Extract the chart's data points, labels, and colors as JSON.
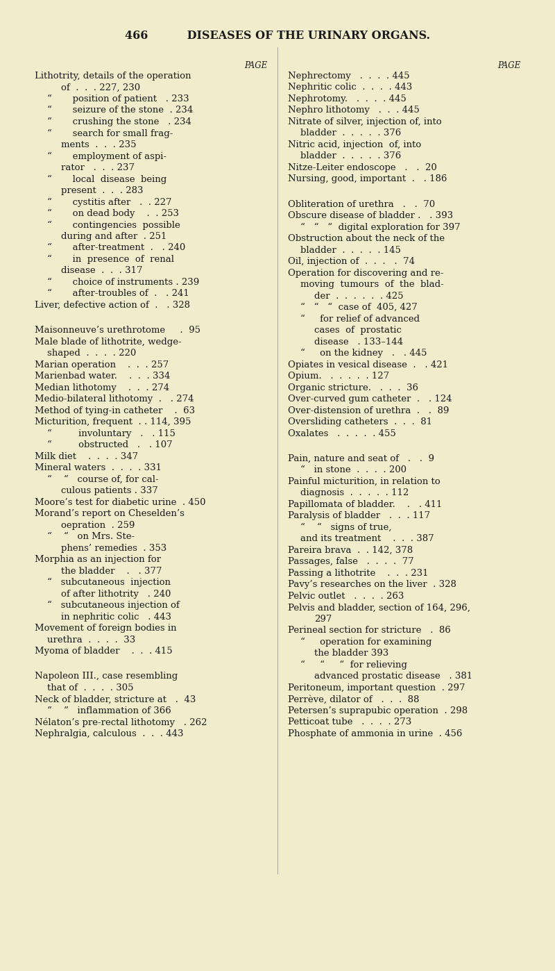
{
  "bg_color": "#f0eccc",
  "text_color": "#1a1a1a",
  "page_header": "466          DISEASES OF THE URINARY ORGANS.",
  "left_col": [
    [
      "PAGE",
      "right",
      0
    ],
    [
      "Lithotrity, details of the operation",
      "left_main",
      0
    ],
    [
      "of  .  .  . 227, 230",
      "indent2",
      0
    ],
    [
      "“       position of patient   . 233",
      "indent1",
      0
    ],
    [
      "“       seizure of the stone  . 234",
      "indent1",
      0
    ],
    [
      "“       crushing the stone   . 234",
      "indent1",
      0
    ],
    [
      "“       search for small frag-",
      "indent1",
      0
    ],
    [
      "ments  .  .  . 235",
      "indent2",
      0
    ],
    [
      "“       employment of aspi-",
      "indent1",
      0
    ],
    [
      "rator   .  .  . 237",
      "indent2",
      0
    ],
    [
      "“       local  disease  being",
      "indent1",
      0
    ],
    [
      "present  .  .  . 283",
      "indent2",
      0
    ],
    [
      "“       cystitis after   .  . 227",
      "indent1",
      0
    ],
    [
      "“       on dead body    .  . 253",
      "indent1",
      0
    ],
    [
      "“       contingencies  possible",
      "indent1",
      0
    ],
    [
      "during and after  . 251",
      "indent2",
      0
    ],
    [
      "“       after-treatment  .   . 240",
      "indent1",
      0
    ],
    [
      "“       in  presence  of  renal",
      "indent1",
      0
    ],
    [
      "disease  .  .  . 317",
      "indent2",
      0
    ],
    [
      "“       choice of instruments . 239",
      "indent1",
      0
    ],
    [
      "“       after-troubles of  .   . 241",
      "indent1",
      0
    ],
    [
      "Liver, defective action of  .   . 328",
      "left_main",
      0
    ],
    [
      "",
      "blank",
      0
    ],
    [
      "",
      "blank",
      0
    ],
    [
      "Maisonneuve’s urethrotome     .  95",
      "left_main_cap",
      0
    ],
    [
      "Male blade of lithotrite, wedge-",
      "left_main",
      0
    ],
    [
      "shaped  .  .  .  . 220",
      "indent1",
      0
    ],
    [
      "Marian operation    .  .  . 257",
      "left_main",
      0
    ],
    [
      "Marienbad water.    .  .  . 334",
      "left_main",
      0
    ],
    [
      "Median lithotomy    .  .  . 274",
      "left_main",
      0
    ],
    [
      "Medio-bilateral lithotomy  .   . 274",
      "left_main",
      0
    ],
    [
      "Method of tying-in catheter    .  63",
      "left_main",
      0
    ],
    [
      "Micturition, frequent  . . 114, 395",
      "left_main",
      0
    ],
    [
      "“         involuntary   .   . 115",
      "indent1",
      0
    ],
    [
      "“         obstructed   .   . 107",
      "indent1",
      0
    ],
    [
      "Milk diet    .  .  .  . 347",
      "left_main",
      0
    ],
    [
      "Mineral waters  .  .  .  . 331",
      "left_main",
      0
    ],
    [
      "“    “   course of, for cal-",
      "indent1",
      0
    ],
    [
      "culous patients . 337",
      "indent2",
      0
    ],
    [
      "Moore’s test for diabetic urine  . 450",
      "left_main",
      0
    ],
    [
      "Morand’s report on Cheselden’s",
      "left_main",
      0
    ],
    [
      "oepration  . 259",
      "indent2",
      0
    ],
    [
      "“    “   on Mrs. Ste-",
      "indent1",
      0
    ],
    [
      "phens’ remedies  . 353",
      "indent2",
      0
    ],
    [
      "Morphia as an injection for",
      "left_main",
      0
    ],
    [
      "the bladder    .   . 377",
      "indent2",
      0
    ],
    [
      "“   subcutaneous  injection",
      "indent1",
      0
    ],
    [
      "of after lithotrity   . 240",
      "indent2",
      0
    ],
    [
      "“   subcutaneous injection of",
      "indent1",
      0
    ],
    [
      "in nephritic colic   . 443",
      "indent2",
      0
    ],
    [
      "Movement of foreign bodies in",
      "left_main",
      0
    ],
    [
      "urethra  .  .  .  .  33",
      "indent1",
      0
    ],
    [
      "Myoma of bladder    .  .  . 415",
      "left_main",
      0
    ],
    [
      "",
      "blank",
      0
    ],
    [
      "",
      "blank",
      0
    ],
    [
      "Napoleon III., case resembling",
      "left_main_cap",
      0
    ],
    [
      "that of  .  .  .  . 305",
      "indent1",
      0
    ],
    [
      "Neck of bladder, stricture at   .  43",
      "left_main",
      0
    ],
    [
      "“    “   inflammation of 366",
      "indent1",
      0
    ],
    [
      "Nélaton’s pre-rectal lithotomy   . 262",
      "left_main",
      0
    ],
    [
      "Nephralgia, calculous  .  .  . 443",
      "left_main",
      0
    ]
  ],
  "right_col": [
    [
      "PAGE",
      "right",
      0
    ],
    [
      "Nephrectomy   .  .  .  . 445",
      "left_main",
      0
    ],
    [
      "Nephritic colic  .  .  .  . 443",
      "left_main",
      0
    ],
    [
      "Nephrotomy.   .  .  .  . 445",
      "left_main",
      0
    ],
    [
      "Nephro lithotomy   .  .  . 445",
      "left_main",
      0
    ],
    [
      "Nitrate of silver, injection of, into",
      "left_main",
      0
    ],
    [
      "bladder  .  .  .  .  . 376",
      "indent1",
      0
    ],
    [
      "Nitric acid, injection  of, into",
      "left_main",
      0
    ],
    [
      "bladder  .  .  .  .  . 376",
      "indent1",
      0
    ],
    [
      "Nitze-Leiter endoscope   .   .  20",
      "left_main",
      0
    ],
    [
      "Nursing, good, important  .   . 186",
      "left_main",
      0
    ],
    [
      "",
      "blank",
      0
    ],
    [
      "",
      "blank",
      0
    ],
    [
      "Obliteration of urethra   .   .  70",
      "left_main_cap",
      0
    ],
    [
      "Obscure disease of bladder .   . 393",
      "left_main",
      0
    ],
    [
      "“   “   “  digital exploration for 397",
      "indent1",
      0
    ],
    [
      "Obstruction about the neck of the",
      "left_main",
      0
    ],
    [
      "bladder  .  .  .  .  . 145",
      "indent1",
      0
    ],
    [
      "Oil, injection of  .  .  .   .  74",
      "left_main",
      0
    ],
    [
      "Operation for discovering and re-",
      "left_main",
      0
    ],
    [
      "moving  tumours  of  the  blad-",
      "indent1",
      0
    ],
    [
      "der  .  .  .  .  .  . 425",
      "indent2",
      0
    ],
    [
      "“   “   “  case of  405, 427",
      "indent1",
      0
    ],
    [
      "“     for relief of advanced",
      "indent1",
      0
    ],
    [
      "cases  of  prostatic",
      "indent2",
      0
    ],
    [
      "disease   . 133–144",
      "indent2",
      0
    ],
    [
      "“     on the kidney   .   . 445",
      "indent1",
      0
    ],
    [
      "Opiates in vesical disease  .   . 421",
      "left_main",
      0
    ],
    [
      "Opium.   .  .  .  .  . 127",
      "left_main",
      0
    ],
    [
      "Organic stricture.   .  .  .  36",
      "left_main",
      0
    ],
    [
      "Over-curved gum catheter  .   . 124",
      "left_main",
      0
    ],
    [
      "Over-distension of urethra  .   .  89",
      "left_main",
      0
    ],
    [
      "Oversliding catheters  .  .  .  81",
      "left_main",
      0
    ],
    [
      "Oxalates   .  .  .  .  . 455",
      "left_main",
      0
    ],
    [
      "",
      "blank",
      0
    ],
    [
      "",
      "blank",
      0
    ],
    [
      "Pain, nature and seat of   .   .  9",
      "left_main_cap",
      0
    ],
    [
      "“   in stone  .  .  .  . 200",
      "indent1",
      0
    ],
    [
      "Painful micturition, in relation to",
      "left_main",
      0
    ],
    [
      "diagnosis  .  .  .  .  . 112",
      "indent1",
      0
    ],
    [
      "Papillomata of bladder.    .   . 411",
      "left_main",
      0
    ],
    [
      "Paralysis of bladder   .  .  . 117",
      "left_main",
      0
    ],
    [
      "“    “   signs of true,",
      "indent1",
      0
    ],
    [
      "and its treatment    .  .  . 387",
      "indent1",
      0
    ],
    [
      "Pareira brava  .  . 142, 378",
      "left_main",
      0
    ],
    [
      "Passages, false   .  .  .  .  77",
      "left_main",
      0
    ],
    [
      "Passing a lithotrite    .  .  . 231",
      "left_main",
      0
    ],
    [
      "Pavy’s researches on the liver  . 328",
      "left_main",
      0
    ],
    [
      "Pelvic outlet   .  .  .  . 263",
      "left_main",
      0
    ],
    [
      "Pelvis and bladder, section of 164, 296,",
      "left_main",
      0
    ],
    [
      "297",
      "indent2",
      0
    ],
    [
      "Perineal section for stricture   .  86",
      "left_main",
      0
    ],
    [
      "“     operation for examining",
      "indent1",
      0
    ],
    [
      "the bladder 393",
      "indent2",
      0
    ],
    [
      "“     “     “  for relieving",
      "indent1",
      0
    ],
    [
      "advanced prostatic disease   . 381",
      "indent2",
      0
    ],
    [
      "Peritoneum, important question  . 297",
      "left_main",
      0
    ],
    [
      "Perrève, dilator of   .  .  .  88",
      "left_main",
      0
    ],
    [
      "Petersen’s suprapubic operation  . 298",
      "left_main",
      0
    ],
    [
      "Petticoat tube   .  .  .  . 273",
      "left_main",
      0
    ],
    [
      "Phosphate of ammonia in urine  . 456",
      "left_main",
      0
    ]
  ]
}
